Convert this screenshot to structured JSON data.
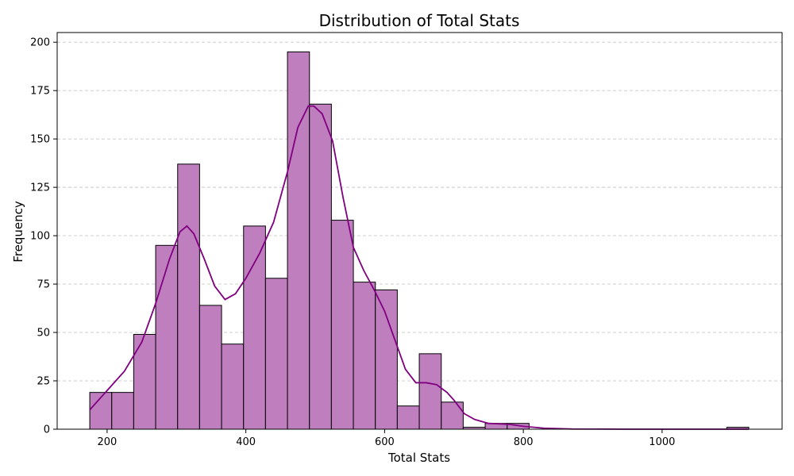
{
  "chart_data": {
    "type": "bar",
    "title": "Distribution of Total Stats",
    "xlabel": "Total Stats",
    "ylabel": "Frequency",
    "xlim": [
      128,
      1173
    ],
    "ylim": [
      0,
      205
    ],
    "x_ticks": [
      200,
      400,
      600,
      800,
      1000
    ],
    "y_ticks": [
      0,
      25,
      50,
      75,
      100,
      125,
      150,
      175,
      200
    ],
    "grid": "y-dashed",
    "bins": [
      {
        "start": 175,
        "end": 206.7,
        "count": 19
      },
      {
        "start": 206.7,
        "end": 238.3,
        "count": 19
      },
      {
        "start": 238.3,
        "end": 270.0,
        "count": 49
      },
      {
        "start": 270.0,
        "end": 301.7,
        "count": 95
      },
      {
        "start": 301.7,
        "end": 333.3,
        "count": 137
      },
      {
        "start": 333.3,
        "end": 365.0,
        "count": 64
      },
      {
        "start": 365.0,
        "end": 396.7,
        "count": 44
      },
      {
        "start": 396.7,
        "end": 428.3,
        "count": 105
      },
      {
        "start": 428.3,
        "end": 460.0,
        "count": 78
      },
      {
        "start": 460.0,
        "end": 491.7,
        "count": 195
      },
      {
        "start": 491.7,
        "end": 523.3,
        "count": 168
      },
      {
        "start": 523.3,
        "end": 555.0,
        "count": 108
      },
      {
        "start": 555.0,
        "end": 586.7,
        "count": 76
      },
      {
        "start": 586.7,
        "end": 618.3,
        "count": 72
      },
      {
        "start": 618.3,
        "end": 650.0,
        "count": 12
      },
      {
        "start": 650.0,
        "end": 681.7,
        "count": 39
      },
      {
        "start": 681.7,
        "end": 713.3,
        "count": 14
      },
      {
        "start": 713.3,
        "end": 745.0,
        "count": 1
      },
      {
        "start": 745.0,
        "end": 776.7,
        "count": 3
      },
      {
        "start": 776.7,
        "end": 808.3,
        "count": 3
      },
      {
        "start": 1093.3,
        "end": 1125.0,
        "count": 1
      }
    ],
    "kde": {
      "x": [
        175,
        200,
        225,
        250,
        270,
        290,
        305,
        315,
        325,
        340,
        355,
        370,
        385,
        400,
        420,
        440,
        460,
        475,
        490,
        498,
        510,
        525,
        540,
        555,
        570,
        585,
        600,
        615,
        630,
        645,
        660,
        675,
        690,
        700,
        715,
        730,
        750,
        780,
        800,
        830,
        870,
        950,
        1050,
        1125
      ],
      "y": [
        10,
        20,
        30,
        45,
        65,
        88,
        102,
        105,
        101,
        88,
        74,
        67,
        70,
        78,
        91,
        107,
        133,
        156,
        167,
        167,
        163,
        149,
        120,
        94,
        82,
        72,
        61,
        46,
        31,
        24,
        24,
        23,
        19,
        15,
        8,
        5,
        3,
        2.5,
        1.5,
        0.5,
        0.1,
        0,
        0,
        0
      ]
    },
    "colors": {
      "bar_fill": "#bf7fbf",
      "bar_edge": "#000000",
      "kde": "#800080",
      "grid": "#c8c8c8"
    }
  }
}
